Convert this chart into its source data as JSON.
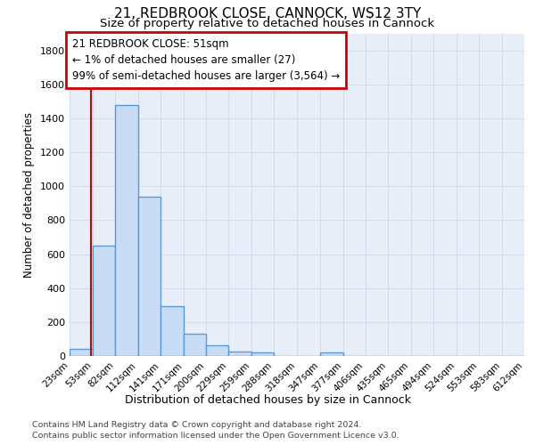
{
  "title1": "21, REDBROOK CLOSE, CANNOCK, WS12 3TY",
  "title2": "Size of property relative to detached houses in Cannock",
  "xlabel": "Distribution of detached houses by size in Cannock",
  "ylabel": "Number of detached properties",
  "bin_labels": [
    "23sqm",
    "53sqm",
    "82sqm",
    "112sqm",
    "141sqm",
    "171sqm",
    "200sqm",
    "229sqm",
    "259sqm",
    "288sqm",
    "318sqm",
    "347sqm",
    "377sqm",
    "406sqm",
    "435sqm",
    "465sqm",
    "494sqm",
    "524sqm",
    "553sqm",
    "583sqm",
    "612sqm"
  ],
  "bar_heights": [
    40,
    650,
    1480,
    940,
    295,
    130,
    65,
    25,
    20,
    0,
    0,
    20,
    0,
    0,
    0,
    0,
    0,
    0,
    0,
    0
  ],
  "bar_color": "#c9dcf5",
  "bar_edge_color": "#5b9bd5",
  "bar_edge_width": 1.0,
  "grid_color": "#d0ddf0",
  "bg_color": "#e8eef8",
  "redline_x": 51,
  "bin_edges_numeric": [
    23,
    53,
    82,
    112,
    141,
    171,
    200,
    229,
    259,
    288,
    318,
    347,
    377,
    406,
    435,
    465,
    494,
    524,
    553,
    583,
    612
  ],
  "annotation_line1": "21 REDBROOK CLOSE: 51sqm",
  "annotation_line2": "← 1% of detached houses are smaller (27)",
  "annotation_line3": "99% of semi-detached houses are larger (3,564) →",
  "annotation_box_color": "#ffffff",
  "annotation_border_color": "#cc0000",
  "ylim": [
    0,
    1900
  ],
  "yticks": [
    0,
    200,
    400,
    600,
    800,
    1000,
    1200,
    1400,
    1600,
    1800
  ],
  "footer1": "Contains HM Land Registry data © Crown copyright and database right 2024.",
  "footer2": "Contains public sector information licensed under the Open Government Licence v3.0."
}
